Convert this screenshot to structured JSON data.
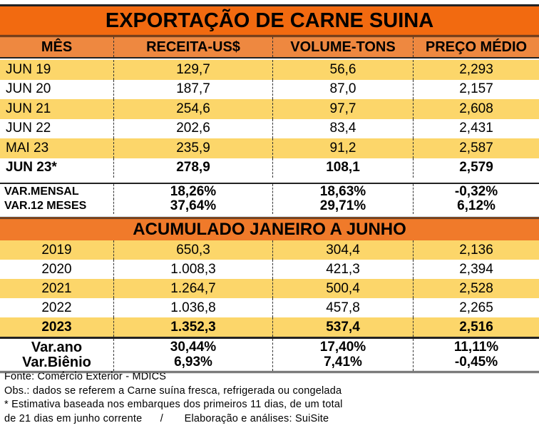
{
  "title": "EXPORTAÇÃO DE CARNE SUINA",
  "headers": [
    "MÊS",
    "RECEITA-US$",
    "VOLUME-TONS",
    "PREÇO MÉDIO"
  ],
  "monthly": [
    [
      "JUN 19",
      "129,7",
      "56,6",
      "2,293"
    ],
    [
      "JUN 20",
      "187,7",
      "87,0",
      "2,157"
    ],
    [
      "JUN 21",
      "254,6",
      "97,7",
      "2,608"
    ],
    [
      "JUN 22",
      "202,6",
      "83,4",
      "2,431"
    ],
    [
      "MAI 23",
      "235,9",
      "91,2",
      "2,587"
    ],
    [
      "JUN 23*",
      "278,9",
      "108,1",
      "2,579"
    ]
  ],
  "variations": [
    [
      "VAR.MENSAL",
      "18,26%",
      "18,63%",
      "-0,32%"
    ],
    [
      "VAR.12 MESES",
      "37,64%",
      "29,71%",
      "6,12%"
    ]
  ],
  "accumulated_title": "ACUMULADO JANEIRO A JUNHO",
  "accumulated": [
    [
      "2019",
      "650,3",
      "304,4",
      "2,136"
    ],
    [
      "2020",
      "1.008,3",
      "421,3",
      "2,394"
    ],
    [
      "2021",
      "1.264,7",
      "500,4",
      "2,528"
    ],
    [
      "2022",
      "1.036,8",
      "457,8",
      "2,265"
    ],
    [
      "2023",
      "1.352,3",
      "537,4",
      "2,516"
    ]
  ],
  "acc_variations": [
    [
      "Var.ano",
      "30,44%",
      "17,40%",
      "11,11%"
    ],
    [
      "Var.Biênio",
      "6,93%",
      "7,41%",
      "-0,45%"
    ]
  ],
  "footnotes": [
    "Fonte: Comércio Exterior - MDICS",
    "Obs.: dados se referem a Carne suína fresca, refrigerada ou congelada",
    "* Estimativa baseada nos embarques dos primeiros 11 dias, de um total",
    "de 21 dias em junho corrente      /       Elaboração e análises: SuiSite"
  ]
}
